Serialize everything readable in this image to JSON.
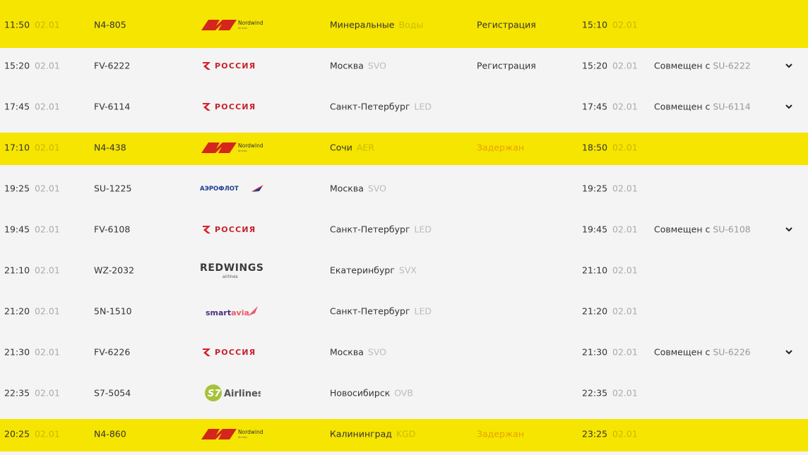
{
  "colors": {
    "highlight": "#f6e500",
    "delayed": "#e8a000",
    "background": "#f4f4f4"
  },
  "flights": [
    {
      "dep_time": "11:50",
      "dep_date": "02.01",
      "flight": "N4-805",
      "airline": "nordwind",
      "logo_text": "Nordwind",
      "city": "Минеральные",
      "code": "Воды",
      "status": "Регистрация",
      "arr_time": "15:10",
      "arr_date": "02.01",
      "codeshare_prefix": "",
      "codeshare_flight": "",
      "highlight": true
    },
    {
      "dep_time": "15:20",
      "dep_date": "02.01",
      "flight": "FV-6222",
      "airline": "rossiya",
      "logo_text": "РОССИЯ",
      "city": "Москва",
      "code": "SVO",
      "status": "Регистрация",
      "arr_time": "15:20",
      "arr_date": "02.01",
      "codeshare_prefix": "Совмещен с ",
      "codeshare_flight": "SU-6222",
      "highlight": false
    },
    {
      "dep_time": "17:45",
      "dep_date": "02.01",
      "flight": "FV-6114",
      "airline": "rossiya",
      "logo_text": "РОССИЯ",
      "city": "Санкт-Петербург",
      "code": "LED",
      "status": "",
      "arr_time": "17:45",
      "arr_date": "02.01",
      "codeshare_prefix": "Совмещен с ",
      "codeshare_flight": "SU-6114",
      "highlight": false
    },
    {
      "dep_time": "17:10",
      "dep_date": "02.01",
      "flight": "N4-438",
      "airline": "nordwind",
      "logo_text": "Nordwind",
      "city": "Сочи",
      "code": "AER",
      "status": "Задержан",
      "arr_time": "18:50",
      "arr_date": "02.01",
      "codeshare_prefix": "",
      "codeshare_flight": "",
      "highlight": true
    },
    {
      "dep_time": "19:25",
      "dep_date": "02.01",
      "flight": "SU-1225",
      "airline": "aeroflot",
      "logo_text": "АЭРОФЛОТ",
      "city": "Москва",
      "code": "SVO",
      "status": "",
      "arr_time": "19:25",
      "arr_date": "02.01",
      "codeshare_prefix": "",
      "codeshare_flight": "",
      "highlight": false
    },
    {
      "dep_time": "19:45",
      "dep_date": "02.01",
      "flight": "FV-6108",
      "airline": "rossiya",
      "logo_text": "РОССИЯ",
      "city": "Санкт-Петербург",
      "code": "LED",
      "status": "",
      "arr_time": "19:45",
      "arr_date": "02.01",
      "codeshare_prefix": "Совмещен с ",
      "codeshare_flight": "SU-6108",
      "highlight": false
    },
    {
      "dep_time": "21:10",
      "dep_date": "02.01",
      "flight": "WZ-2032",
      "airline": "redwings",
      "logo_text": "REDWINGS",
      "city": "Екатеринбург",
      "code": "SVX",
      "status": "",
      "arr_time": "21:10",
      "arr_date": "02.01",
      "codeshare_prefix": "",
      "codeshare_flight": "",
      "highlight": false
    },
    {
      "dep_time": "21:20",
      "dep_date": "02.01",
      "flight": "5N-1510",
      "airline": "smartavia",
      "logo_text": "smartavia",
      "city": "Санкт-Петербург",
      "code": "LED",
      "status": "",
      "arr_time": "21:20",
      "arr_date": "02.01",
      "codeshare_prefix": "",
      "codeshare_flight": "",
      "highlight": false
    },
    {
      "dep_time": "21:30",
      "dep_date": "02.01",
      "flight": "FV-6226",
      "airline": "rossiya",
      "logo_text": "РОССИЯ",
      "city": "Москва",
      "code": "SVO",
      "status": "",
      "arr_time": "21:30",
      "arr_date": "02.01",
      "codeshare_prefix": "Совмещен с ",
      "codeshare_flight": "SU-6226",
      "highlight": false
    },
    {
      "dep_time": "22:35",
      "dep_date": "02.01",
      "flight": "S7-5054",
      "airline": "s7",
      "logo_text": "Airlines",
      "city": "Новосибирск",
      "code": "OVB",
      "status": "",
      "arr_time": "22:35",
      "arr_date": "02.01",
      "codeshare_prefix": "",
      "codeshare_flight": "",
      "highlight": false
    },
    {
      "dep_time": "20:25",
      "dep_date": "02.01",
      "flight": "N4-860",
      "airline": "nordwind",
      "logo_text": "Nordwind",
      "city": "Калининград",
      "code": "KGD",
      "status": "Задержан",
      "arr_time": "23:25",
      "arr_date": "02.01",
      "codeshare_prefix": "",
      "codeshare_flight": "",
      "highlight": true
    }
  ]
}
